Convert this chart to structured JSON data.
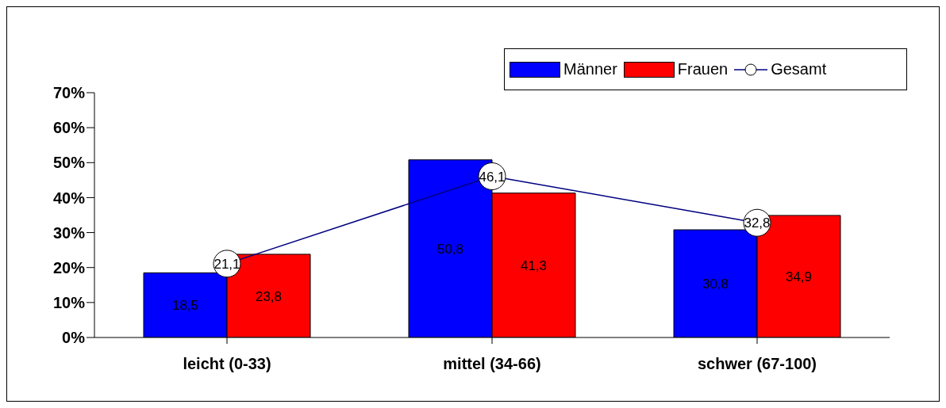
{
  "chart_data": {
    "type": "bar",
    "categories": [
      "leicht (0-33)",
      "mittel (34-66)",
      "schwer (67-100)"
    ],
    "series": [
      {
        "name": "Männer",
        "color": "#0000ff",
        "values": [
          18.5,
          50.8,
          30.8
        ],
        "value_labels": [
          "18,5",
          "50,8",
          "30,8"
        ]
      },
      {
        "name": "Frauen",
        "color": "#ff0000",
        "values": [
          23.8,
          41.3,
          34.9
        ],
        "value_labels": [
          "23,8",
          "41,3",
          "34,9"
        ]
      },
      {
        "name": "Gesamt",
        "type": "line",
        "color": "#000080",
        "marker": "circle",
        "values": [
          21.1,
          46.1,
          32.8
        ],
        "value_labels": [
          "21,1",
          "46,1",
          "32,8"
        ]
      }
    ],
    "ylim": [
      0,
      70
    ],
    "yticks": [
      {
        "value": 0,
        "label": "0%"
      },
      {
        "value": 10,
        "label": "10%"
      },
      {
        "value": 20,
        "label": "20%"
      },
      {
        "value": 30,
        "label": "30%"
      },
      {
        "value": 40,
        "label": "40%"
      },
      {
        "value": 50,
        "label": "50%"
      },
      {
        "value": 60,
        "label": "60%"
      },
      {
        "value": 70,
        "label": "70%"
      }
    ],
    "grid": false,
    "legend": "top right"
  }
}
